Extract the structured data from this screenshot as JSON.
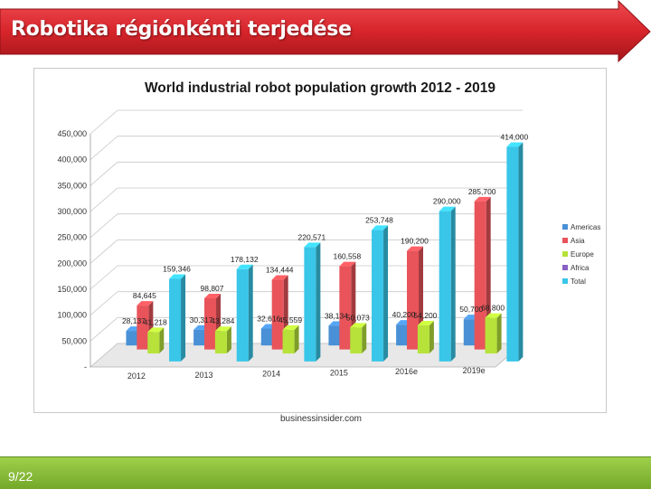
{
  "slide": {
    "title": "Robotika régiónkénti terjedése",
    "source": "businessinsider.com",
    "page_number": "9/22",
    "banner_color": "#d7252b",
    "footer_color": "#8bc34a"
  },
  "chart_data": {
    "type": "bar",
    "title": "World industrial robot population growth 2012 - 2019",
    "xlabel": "",
    "ylabel": "",
    "categories": [
      "2012",
      "2013",
      "2014",
      "2015",
      "2016e",
      "2019e"
    ],
    "series": [
      {
        "name": "Americas",
        "color": "#4a90d6",
        "values": [
          28137,
          30317,
          32616,
          38134,
          40200,
          50700
        ],
        "labels": [
          "28,137",
          "30,317",
          "32,616",
          "38,134",
          "40,200",
          "50,700"
        ]
      },
      {
        "name": "Asia",
        "color": "#e8545a",
        "values": [
          84645,
          98807,
          134444,
          160558,
          190200,
          285700
        ],
        "labels": [
          "84,645",
          "98,807",
          "134,444",
          "160,558",
          "190,200",
          "285,700"
        ]
      },
      {
        "name": "Europe",
        "color": "#b6e23a",
        "values": [
          41218,
          43284,
          45559,
          50073,
          54200,
          68800
        ],
        "labels": [
          "41,218",
          "43,284",
          "45,559",
          "50,073",
          "54,200",
          "68,800"
        ]
      },
      {
        "name": "Africa",
        "color": "#8a5fc4",
        "values": [
          0,
          0,
          0,
          0,
          0,
          0
        ],
        "labels": [
          "",
          "",
          "",
          "",
          "",
          ""
        ]
      },
      {
        "name": "Total",
        "color": "#39c6e8",
        "values": [
          159346,
          178132,
          220571,
          253748,
          290000,
          414000
        ],
        "labels": [
          "159,346",
          "178,132",
          "220,571",
          "253,748",
          "290,000",
          "414,000"
        ]
      }
    ],
    "ylim": [
      0,
      450000
    ],
    "yticks": [
      0,
      50000,
      100000,
      150000,
      200000,
      250000,
      300000,
      350000,
      400000,
      450000
    ],
    "ytick_labels": [
      "-",
      "50,000",
      "100,000",
      "150,000",
      "200,000",
      "250,000",
      "300,000",
      "350,000",
      "400,000",
      "450,000"
    ],
    "grid": true,
    "legend": "right",
    "style": "3d-columns"
  }
}
